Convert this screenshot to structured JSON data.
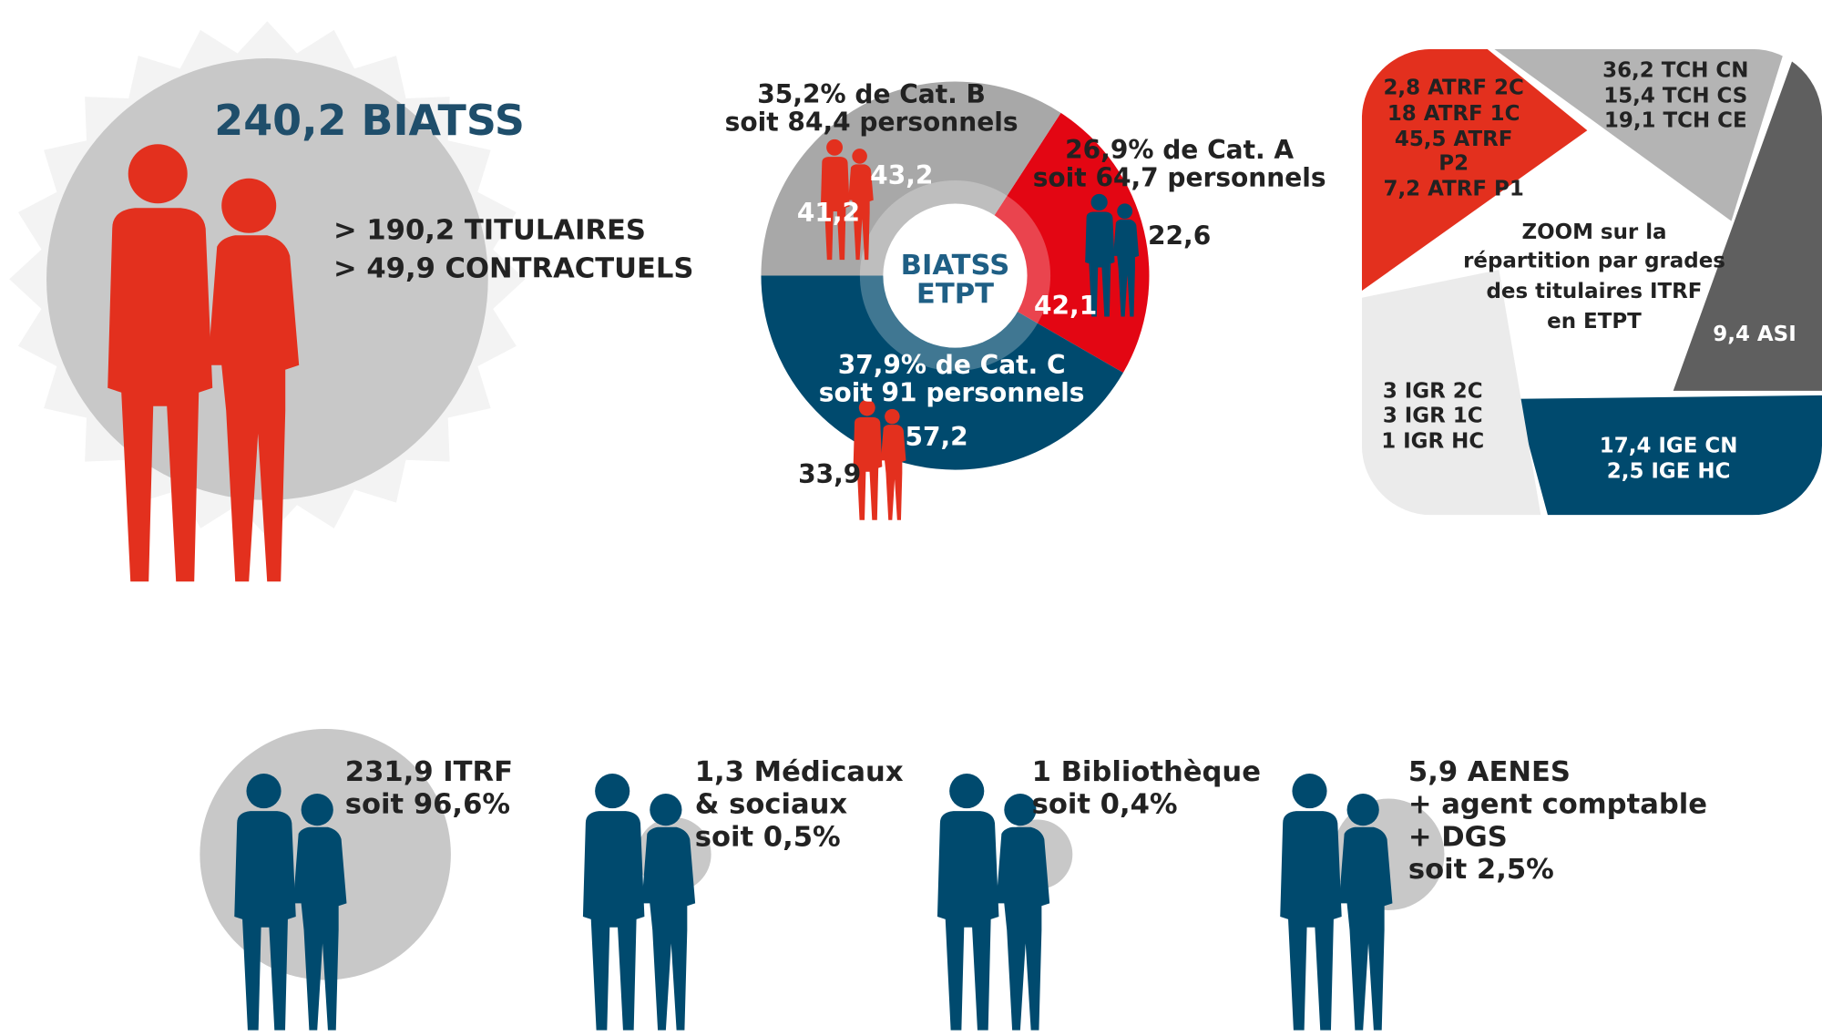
{
  "summary": {
    "total": "240,2 BIATSS",
    "lines": [
      "> 190,2 TITULAIRES",
      "> 49,9 CONTRACTUELS"
    ]
  },
  "donut": {
    "center": [
      "BIATSS",
      "ETPT"
    ],
    "cat_b": {
      "lines": [
        "35,2% de Cat. B",
        "soit 84,4 personnels"
      ],
      "numbers": [
        "43,2",
        "41,2"
      ]
    },
    "cat_a": {
      "lines": [
        "26,9% de Cat. A",
        "soit 64,7 personnels"
      ],
      "numbers": [
        "22,6",
        "42,1"
      ]
    },
    "cat_c": {
      "lines": [
        "37,9% de Cat. C",
        "soit 91 personnels"
      ],
      "numbers": [
        "57,2",
        "33,9"
      ]
    }
  },
  "zoom": {
    "title": [
      "ZOOM sur la",
      "répartition par grades",
      "des titulaires ITRF",
      "en ETPT"
    ],
    "atrf": [
      "2,8 ATRF 2C",
      "18 ATRF 1C",
      "45,5 ATRF",
      "P2",
      "7,2 ATRF P1"
    ],
    "tch": [
      "36,2 TCH CN",
      "15,4 TCH CS",
      "19,1 TCH CE"
    ],
    "asi": [
      "9,4 ASI"
    ],
    "igr": [
      "3 IGR 2C",
      "3 IGR 1C",
      "1 IGR HC"
    ],
    "ige": [
      "17,4 IGE CN",
      "2,5 IGE HC"
    ]
  },
  "groups": [
    {
      "lines": [
        "231,9 ITRF",
        "soit 96,6%"
      ]
    },
    {
      "lines": [
        "1,3 Médicaux",
        "& sociaux",
        "soit 0,5%"
      ]
    },
    {
      "lines": [
        "1 Bibliothèque",
        "soit 0,4%"
      ]
    },
    {
      "lines": [
        "5,9 AENES",
        "+ agent comptable",
        "+ DGS",
        "soit 2,5%"
      ]
    }
  ]
}
